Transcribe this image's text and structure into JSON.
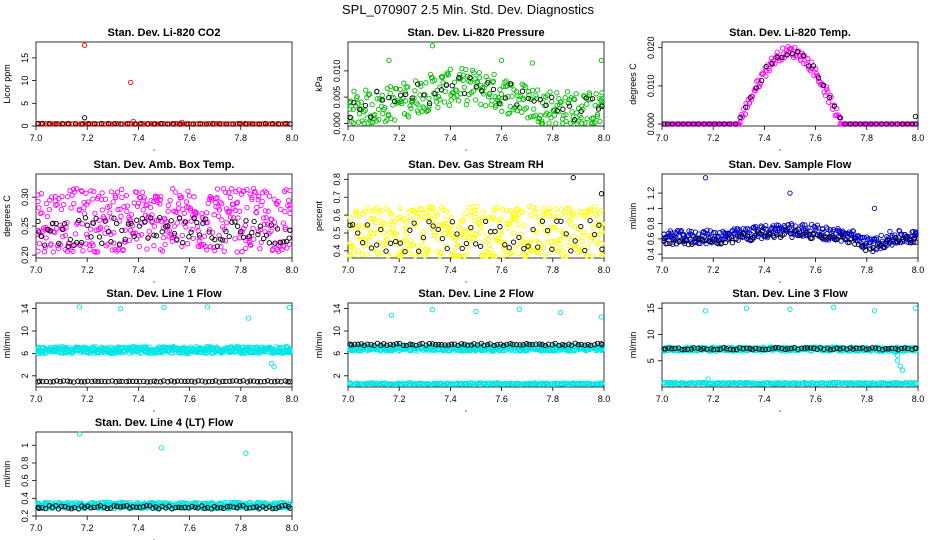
{
  "page": {
    "title": "SPL_070907  2.5 Min. Std. Dev. Diagnostics"
  },
  "chart_data": [
    {
      "id": "co2",
      "type": "scatter",
      "title": "Stan. Dev. Li-820 CO2",
      "ylabel": "Licor ppm",
      "xlim": [
        7.0,
        8.0
      ],
      "ylim": [
        0,
        18.5
      ],
      "yticks": [
        0,
        5,
        10,
        15
      ],
      "xticks": [
        7.0,
        7.2,
        7.4,
        7.6,
        7.8,
        8.0
      ],
      "series": [
        {
          "name": "main",
          "color": "#ff0000",
          "kind": "flat",
          "base": 0.4,
          "amp": 0.15,
          "count": 110,
          "outliers": [
            [
              7.19,
              17.8
            ],
            [
              7.37,
              9.6
            ],
            [
              7.38,
              1.0
            ],
            [
              7.57,
              0.8
            ]
          ]
        },
        {
          "name": "secondary",
          "color": "#000000",
          "kind": "flat",
          "base": 0.45,
          "amp": 0.1,
          "count": 40,
          "outliers": [
            [
              7.19,
              1.8
            ]
          ]
        }
      ]
    },
    {
      "id": "pressure",
      "type": "scatter",
      "title": "Stan. Dev. Li-820 Pressure",
      "ylabel": "kPa",
      "xlim": [
        7.0,
        8.0
      ],
      "ylim": [
        -0.0005,
        0.0155
      ],
      "yticks": [
        0,
        0.005,
        0.01
      ],
      "yticklabels": [
        "0.000",
        "0.005",
        "0.010"
      ],
      "xticks": [
        7.0,
        7.2,
        7.4,
        7.6,
        7.8,
        8.0
      ],
      "series": [
        {
          "name": "main",
          "color": "#00bb00",
          "kind": "hump",
          "base": 0.0025,
          "peak": 0.007,
          "center": 7.45,
          "width": 0.25,
          "amp": 0.0035,
          "count": 320,
          "outliers": [
            [
              7.16,
              0.012
            ],
            [
              7.33,
              0.0148
            ],
            [
              7.6,
              0.012
            ],
            [
              7.72,
              0.0115
            ],
            [
              7.99,
              0.012
            ],
            [
              7.76,
              0.0
            ]
          ]
        },
        {
          "name": "secondary",
          "color": "#000000",
          "kind": "hump",
          "base": 0.003,
          "peak": 0.007,
          "center": 7.45,
          "width": 0.25,
          "amp": 0.0025,
          "count": 45,
          "outliers": []
        }
      ]
    },
    {
      "id": "temp",
      "type": "scatter",
      "title": "Stan. Dev. Li-820 Temp.",
      "ylabel": "degrees C",
      "xlim": [
        7.0,
        8.0
      ],
      "ylim": [
        -0.0005,
        0.0215
      ],
      "yticks": [
        0,
        0.01,
        0.02
      ],
      "yticklabels": [
        "0.000",
        "0.010",
        "0.020"
      ],
      "xticks": [
        7.0,
        7.2,
        7.4,
        7.6,
        7.8,
        8.0
      ],
      "series": [
        {
          "name": "main",
          "color": "#ff00ff",
          "kind": "bell",
          "start": 7.3,
          "end": 7.7,
          "peak": 0.019,
          "amp": 0.0015,
          "count": 260,
          "outliers": []
        },
        {
          "name": "secondary",
          "color": "#000000",
          "kind": "bell",
          "start": 7.3,
          "end": 7.7,
          "peak": 0.019,
          "amp": 0.001,
          "count": 50,
          "outliers": [
            [
              7.99,
              0.002
            ]
          ]
        }
      ]
    },
    {
      "id": "ambbox",
      "type": "scatter",
      "title": "Stan. Dev. Amb. Box Temp.",
      "ylabel": "degrees C",
      "xlim": [
        7.0,
        8.0
      ],
      "ylim": [
        0.195,
        0.34
      ],
      "yticks": [
        0.2,
        0.25,
        0.3
      ],
      "yticklabels": [
        "0.20",
        "0.25",
        "0.30"
      ],
      "xticks": [
        7.0,
        7.2,
        7.4,
        7.6,
        7.8,
        8.0
      ],
      "series": [
        {
          "name": "main",
          "color": "#ff00ff",
          "kind": "flat",
          "base": 0.26,
          "amp": 0.055,
          "count": 420,
          "outliers": []
        },
        {
          "name": "secondary",
          "color": "#000000",
          "kind": "flat",
          "base": 0.24,
          "amp": 0.025,
          "count": 90,
          "outliers": []
        }
      ]
    },
    {
      "id": "rh",
      "type": "scatter",
      "title": "Stan. Dev. Gas Stream RH",
      "ylabel": "percent",
      "xlim": [
        7.0,
        8.0
      ],
      "ylim": [
        0.36,
        0.83
      ],
      "yticks": [
        0.4,
        0.5,
        0.6,
        0.7,
        0.8
      ],
      "xticks": [
        7.0,
        7.2,
        7.4,
        7.6,
        7.8,
        8.0
      ],
      "series": [
        {
          "name": "main",
          "color": "#ffff00",
          "kind": "flat",
          "base": 0.5,
          "amp": 0.15,
          "count": 420,
          "outliers": []
        },
        {
          "name": "secondary",
          "color": "#000000",
          "kind": "flat",
          "base": 0.48,
          "amp": 0.09,
          "count": 55,
          "outliers": [
            [
              7.88,
              0.81
            ],
            [
              7.99,
              0.72
            ]
          ]
        }
      ]
    },
    {
      "id": "sampleflow",
      "type": "scatter",
      "title": "Stan. Dev. Sample Flow",
      "ylabel": "ml/min",
      "xlim": [
        7.0,
        8.0
      ],
      "ylim": [
        0.35,
        1.45
      ],
      "yticks": [
        0.4,
        0.6,
        0.8,
        1.0,
        1.2
      ],
      "xticks": [
        7.0,
        7.2,
        7.4,
        7.6,
        7.8,
        8.0
      ],
      "series": [
        {
          "name": "main",
          "color": "#0000cc",
          "kind": "wave",
          "base": 0.62,
          "amp": 0.09,
          "count": 380,
          "outliers": [
            [
              7.17,
              1.4
            ],
            [
              7.5,
              1.2
            ],
            [
              7.83,
              1.0
            ]
          ]
        },
        {
          "name": "secondary",
          "color": "#000000",
          "kind": "wave",
          "base": 0.58,
          "amp": 0.06,
          "count": 70,
          "outliers": []
        }
      ]
    },
    {
      "id": "line1",
      "type": "scatter",
      "title": "Stan. Dev. Line 1 Flow",
      "ylabel": "ml/min",
      "xlim": [
        7.0,
        8.0
      ],
      "ylim": [
        0,
        15
      ],
      "yticks": [
        2,
        6,
        10,
        14
      ],
      "xticks": [
        7.0,
        7.2,
        7.4,
        7.6,
        7.8,
        8.0
      ],
      "series": [
        {
          "name": "main",
          "color": "#00e5e5",
          "kind": "flat",
          "base": 6.6,
          "amp": 0.6,
          "count": 520,
          "outliers": [
            [
              7.17,
              14.3
            ],
            [
              7.33,
              14.0
            ],
            [
              7.5,
              14.2
            ],
            [
              7.67,
              14.3
            ],
            [
              7.83,
              12.3
            ],
            [
              7.99,
              14.2
            ],
            [
              7.92,
              4.2
            ],
            [
              7.93,
              3.6
            ]
          ]
        },
        {
          "name": "secondary",
          "color": "#000000",
          "kind": "flat",
          "base": 1.0,
          "amp": 0.1,
          "count": 75,
          "outliers": []
        }
      ]
    },
    {
      "id": "line2",
      "type": "scatter",
      "title": "Stan. Dev. Line 2 Flow",
      "ylabel": "ml/min",
      "xlim": [
        7.0,
        8.0
      ],
      "ylim": [
        0,
        15
      ],
      "yticks": [
        2,
        6,
        10,
        14
      ],
      "xticks": [
        7.0,
        7.2,
        7.4,
        7.6,
        7.8,
        8.0
      ],
      "series": [
        {
          "name": "main",
          "color": "#00e5e5",
          "kind": "flat",
          "base": 6.9,
          "amp": 0.5,
          "count": 480,
          "outliers": [
            [
              7.17,
              12.8
            ],
            [
              7.33,
              13.8
            ],
            [
              7.5,
              13.5
            ],
            [
              7.67,
              13.9
            ],
            [
              7.83,
              13.3
            ],
            [
              7.99,
              12.5
            ],
            [
              7.7,
              0.5
            ]
          ]
        },
        {
          "name": "cluster",
          "color": "#00e5e5",
          "kind": "flat",
          "base": 0.6,
          "amp": 0.15,
          "count": 220,
          "outliers": []
        },
        {
          "name": "secondary",
          "color": "#000000",
          "kind": "flat",
          "base": 7.6,
          "amp": 0.2,
          "count": 80,
          "outliers": []
        }
      ]
    },
    {
      "id": "line3",
      "type": "scatter",
      "title": "Stan. Dev. Line 3 Flow",
      "ylabel": "ml/min",
      "xlim": [
        7.0,
        8.0
      ],
      "ylim": [
        0,
        16
      ],
      "yticks": [
        5,
        10,
        15
      ],
      "xticks": [
        7.0,
        7.2,
        7.4,
        7.6,
        7.8,
        8.0
      ],
      "series": [
        {
          "name": "main",
          "color": "#00e5e5",
          "kind": "flat",
          "base": 7.2,
          "amp": 0.4,
          "count": 420,
          "outliers": [
            [
              7.17,
              14.5
            ],
            [
              7.33,
              15.0
            ],
            [
              7.5,
              14.8
            ],
            [
              7.67,
              15.2
            ],
            [
              7.83,
              14.5
            ],
            [
              7.99,
              15.0
            ],
            [
              7.92,
              5.0
            ],
            [
              7.93,
              4.0
            ],
            [
              7.94,
              3.2
            ],
            [
              7.92,
              6.0
            ],
            [
              7.91,
              6.5
            ]
          ]
        },
        {
          "name": "cluster",
          "color": "#00e5e5",
          "kind": "flat",
          "base": 0.7,
          "amp": 0.15,
          "count": 220,
          "outliers": [
            [
              7.18,
              1.5
            ]
          ]
        },
        {
          "name": "secondary",
          "color": "#000000",
          "kind": "flat",
          "base": 7.3,
          "amp": 0.2,
          "count": 80,
          "outliers": []
        }
      ]
    },
    {
      "id": "line4",
      "type": "scatter",
      "title": "Stan. Dev. Line 4 (LT) Flow",
      "ylabel": "ml/min",
      "xlim": [
        7.0,
        8.0
      ],
      "ylim": [
        0.2,
        1.15
      ],
      "yticks": [
        0.2,
        0.4,
        0.6,
        0.8,
        1.0
      ],
      "xticks": [
        7.0,
        7.2,
        7.4,
        7.6,
        7.8,
        8.0
      ],
      "series": [
        {
          "name": "main",
          "color": "#00e5e5",
          "kind": "flat",
          "base": 0.32,
          "amp": 0.035,
          "count": 460,
          "outliers": [
            [
              7.17,
              1.13
            ],
            [
              7.49,
              0.97
            ],
            [
              7.82,
              0.91
            ]
          ]
        },
        {
          "name": "secondary",
          "color": "#000000",
          "kind": "flat",
          "base": 0.3,
          "amp": 0.02,
          "count": 80,
          "outliers": []
        }
      ]
    }
  ]
}
